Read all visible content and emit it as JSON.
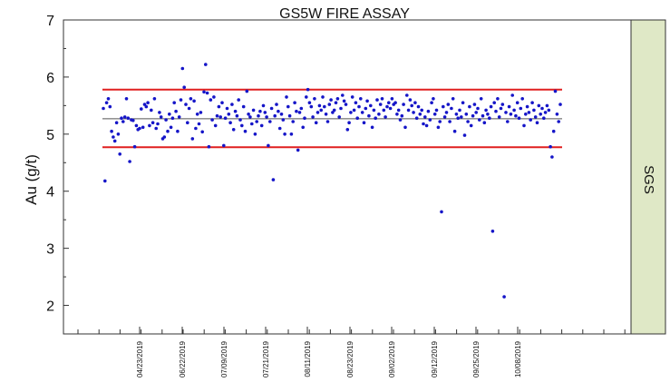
{
  "chart_data": {
    "type": "scatter",
    "title": "GS5W FIRE ASSAY",
    "xlabel": "",
    "ylabel": "Au (g/t)",
    "ylim": [
      1.5,
      7
    ],
    "yticks": [
      2,
      3,
      4,
      5,
      6,
      7
    ],
    "x_tick_labels": [
      "04/23/2019",
      "06/22/2019",
      "07/09/2019",
      "07/21/2019",
      "08/11/2019",
      "08/23/2019",
      "09/02/2019",
      "09/12/2019",
      "09/25/2019",
      "10/08/2019"
    ],
    "reference_lines": {
      "target": 5.27,
      "upper_limit": 5.78,
      "lower_limit": 4.77,
      "target_color": "#555555",
      "limit_color": "#e02020"
    },
    "side_panel_label": "SGS",
    "side_panel_color": "#dfe8c6",
    "marker_color": "#1515c8",
    "grid": false,
    "series": [
      {
        "values": [
          5.45,
          4.18,
          5.55,
          5.62,
          5.48,
          5.05,
          4.95,
          4.88,
          5.2,
          5.0,
          4.65,
          5.28,
          5.22,
          5.3,
          5.62,
          5.28,
          4.52,
          5.25,
          5.24,
          4.78,
          5.15,
          5.08,
          5.1,
          5.44,
          5.12,
          5.52,
          5.48,
          5.55,
          5.15,
          5.42,
          5.2,
          5.62,
          5.1,
          5.18,
          5.38,
          5.3,
          4.92,
          4.95,
          5.25,
          5.05,
          5.35,
          5.12,
          5.28,
          5.55,
          5.4,
          5.05,
          5.3,
          5.6,
          6.15,
          5.82,
          5.52,
          5.2,
          5.45,
          5.62,
          4.92,
          5.58,
          5.1,
          5.35,
          5.18,
          5.38,
          5.04,
          5.74,
          6.22,
          5.72,
          4.78,
          5.6,
          5.25,
          5.65,
          5.15,
          5.32,
          5.48,
          5.3,
          5.55,
          4.8,
          5.28,
          5.45,
          5.35,
          5.2,
          5.52,
          5.08,
          5.4,
          5.32,
          5.6,
          5.25,
          5.15,
          5.48,
          5.05,
          5.75,
          5.35,
          5.3,
          5.18,
          5.42,
          5.0,
          5.22,
          5.32,
          5.4,
          5.15,
          5.5,
          5.38,
          5.3,
          4.8,
          5.22,
          5.45,
          4.2,
          5.32,
          5.52,
          5.4,
          5.1,
          5.35,
          5.25,
          5.0,
          5.65,
          5.48,
          5.32,
          5.0,
          5.22,
          5.55,
          5.4,
          4.72,
          5.38,
          5.45,
          5.12,
          5.28,
          5.65,
          5.78,
          5.55,
          5.48,
          5.3,
          5.62,
          5.2,
          5.38,
          5.5,
          5.42,
          5.65,
          5.48,
          5.35,
          5.22,
          5.52,
          5.6,
          5.38,
          5.42,
          5.55,
          5.62,
          5.3,
          5.45,
          5.68,
          5.58,
          5.52,
          5.08,
          5.2,
          5.38,
          5.65,
          5.42,
          5.55,
          5.28,
          5.48,
          5.62,
          5.38,
          5.2,
          5.45,
          5.58,
          5.32,
          5.5,
          5.12,
          5.42,
          5.28,
          5.6,
          5.35,
          5.52,
          5.62,
          5.42,
          5.3,
          5.48,
          5.55,
          5.45,
          5.62,
          5.52,
          5.55,
          5.35,
          5.42,
          5.25,
          5.32,
          5.52,
          5.12,
          5.68,
          5.42,
          5.6,
          5.5,
          5.38,
          5.55,
          5.28,
          5.48,
          5.35,
          5.42,
          5.18,
          5.3,
          5.15,
          5.4,
          5.25,
          5.55,
          5.62,
          5.35,
          5.42,
          5.12,
          5.22,
          3.64,
          5.48,
          5.3,
          5.38,
          5.52,
          5.22,
          5.45,
          5.62,
          5.05,
          5.35,
          5.28,
          5.42,
          5.3,
          5.55,
          4.98,
          5.35,
          5.22,
          5.48,
          5.15,
          5.32,
          5.52,
          5.38,
          5.45,
          5.25,
          5.62,
          5.32,
          5.2,
          5.42,
          5.35,
          5.28,
          5.48,
          3.3,
          5.55,
          5.4,
          5.62,
          5.3,
          5.45,
          5.52,
          2.15,
          5.38,
          5.22,
          5.48,
          5.35,
          5.68,
          5.42,
          5.32,
          5.55,
          5.28,
          5.45,
          5.62,
          5.15,
          5.35,
          5.48,
          5.38,
          5.25,
          5.55,
          5.42,
          5.3,
          5.2,
          5.5,
          5.35,
          5.45,
          5.28,
          5.38,
          5.5,
          5.42,
          4.78,
          4.6,
          5.05,
          5.75,
          5.35,
          5.22,
          5.52
        ]
      }
    ]
  }
}
